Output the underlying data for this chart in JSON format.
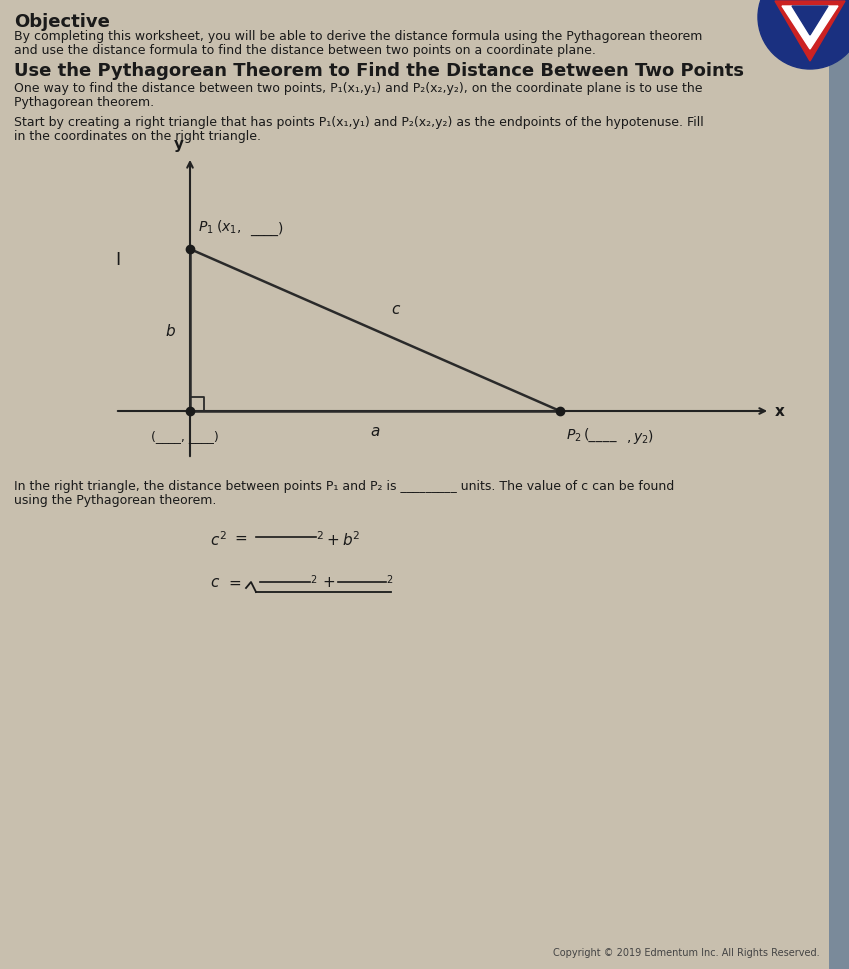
{
  "background_color": "#cdc5b4",
  "page_bg": "#c8bfae",
  "title_objective": "Objective",
  "objective_text1": "By completing this worksheet, you will be able to derive the distance formula using the Pythagorean theorem",
  "objective_text2": "and use the distance formula to find the distance between two points on a coordinate plane.",
  "section_title": "Use the Pythagorean Theorem to Find the Distance Between Two Points",
  "para1_line1": "One way to find the distance between two points, P₁(x₁,y₁) and P₂(x₂,y₂), on the coordinate plane is to use the",
  "para1_line2": "Pythagorean theorem.",
  "para2_line1": "Start by creating a right triangle that has points P₁(x₁,y₁) and P₂(x₂,y₂) as the endpoints of the hypotenuse. Fill",
  "para2_line2": "in the coordinates on the right triangle.",
  "bottom_text_line1": "In the right triangle, the distance between points P₁ and P₂ is _________ units. The value of c can be found",
  "bottom_text_line2": "using the Pythagorean theorem.",
  "copyright": "Copyright © 2019 Edmentum Inc. All Rights Reserved.",
  "text_color": "#1a1a1a",
  "axis_color": "#222222",
  "triangle_color": "#2a2a2a",
  "dot_color": "#1a1a1a",
  "right_bar_color": "#7a8a9a",
  "logo_blue": "#1a3080",
  "logo_red": "#cc2222"
}
